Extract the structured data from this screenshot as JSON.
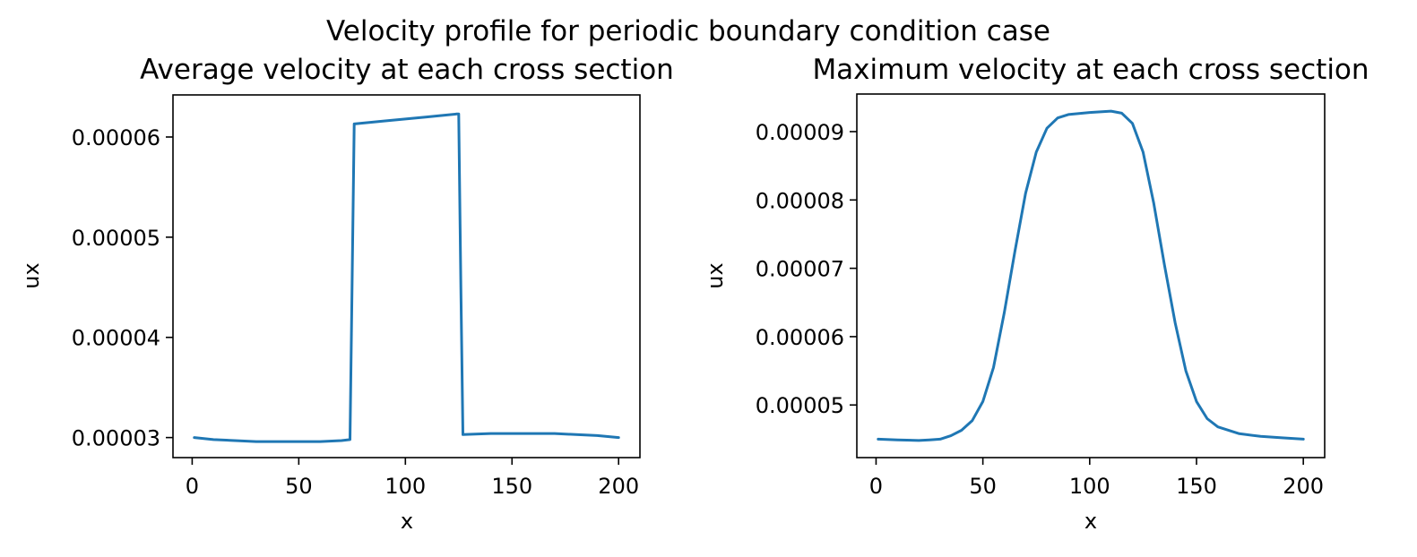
{
  "figure": {
    "suptitle": "Velocity profile for periodic boundary condition case"
  },
  "chart_data": [
    {
      "type": "line",
      "title": "Average velocity at each cross section",
      "xlabel": "x",
      "ylabel": "ux",
      "xlim": [
        -9,
        210
      ],
      "ylim": [
        2.8e-05,
        6.42e-05
      ],
      "xticks": [
        0,
        50,
        100,
        150,
        200
      ],
      "xtick_labels": [
        "0",
        "50",
        "100",
        "150",
        "200"
      ],
      "yticks": [
        3e-05,
        4e-05,
        5e-05,
        6e-05
      ],
      "ytick_labels": [
        "0.00003",
        "0.00004",
        "0.00005",
        "0.00006"
      ],
      "grid": false,
      "series": [
        {
          "color": "#1f77b4",
          "x": [
            1,
            10,
            20,
            30,
            40,
            50,
            60,
            70,
            74,
            75,
            76,
            90,
            110,
            124,
            125,
            126,
            127,
            140,
            150,
            160,
            170,
            180,
            190,
            200
          ],
          "y": [
            3e-05,
            2.98e-05,
            2.97e-05,
            2.96e-05,
            2.96e-05,
            2.96e-05,
            2.96e-05,
            2.97e-05,
            2.98e-05,
            4.5e-05,
            6.13e-05,
            6.16e-05,
            6.2e-05,
            6.23e-05,
            6.23e-05,
            4.5e-05,
            3.03e-05,
            3.04e-05,
            3.04e-05,
            3.04e-05,
            3.04e-05,
            3.03e-05,
            3.02e-05,
            3e-05
          ]
        }
      ]
    },
    {
      "type": "line",
      "title": "Maximum velocity at each cross section",
      "xlabel": "x",
      "ylabel": "ux",
      "xlim": [
        -9,
        210
      ],
      "ylim": [
        4.23e-05,
        9.55e-05
      ],
      "xticks": [
        0,
        50,
        100,
        150,
        200
      ],
      "xtick_labels": [
        "0",
        "50",
        "100",
        "150",
        "200"
      ],
      "yticks": [
        5e-05,
        6e-05,
        7e-05,
        8e-05,
        9e-05
      ],
      "ytick_labels": [
        "0.00005",
        "0.00006",
        "0.00007",
        "0.00008",
        "0.00009"
      ],
      "grid": false,
      "series": [
        {
          "color": "#1f77b4",
          "x": [
            1,
            10,
            20,
            25,
            30,
            35,
            40,
            45,
            50,
            55,
            60,
            65,
            70,
            75,
            80,
            85,
            90,
            100,
            110,
            115,
            120,
            125,
            130,
            135,
            140,
            145,
            150,
            155,
            160,
            170,
            180,
            190,
            200
          ],
          "y": [
            4.5e-05,
            4.49e-05,
            4.48e-05,
            4.49e-05,
            4.5e-05,
            4.55e-05,
            4.63e-05,
            4.77e-05,
            5.05e-05,
            5.55e-05,
            6.35e-05,
            7.25e-05,
            8.1e-05,
            8.7e-05,
            9.05e-05,
            9.2e-05,
            9.25e-05,
            9.28e-05,
            9.3e-05,
            9.27e-05,
            9.12e-05,
            8.7e-05,
            7.95e-05,
            7.05e-05,
            6.2e-05,
            5.5e-05,
            5.05e-05,
            4.8e-05,
            4.68e-05,
            4.58e-05,
            4.54e-05,
            4.52e-05,
            4.5e-05
          ]
        }
      ]
    }
  ]
}
